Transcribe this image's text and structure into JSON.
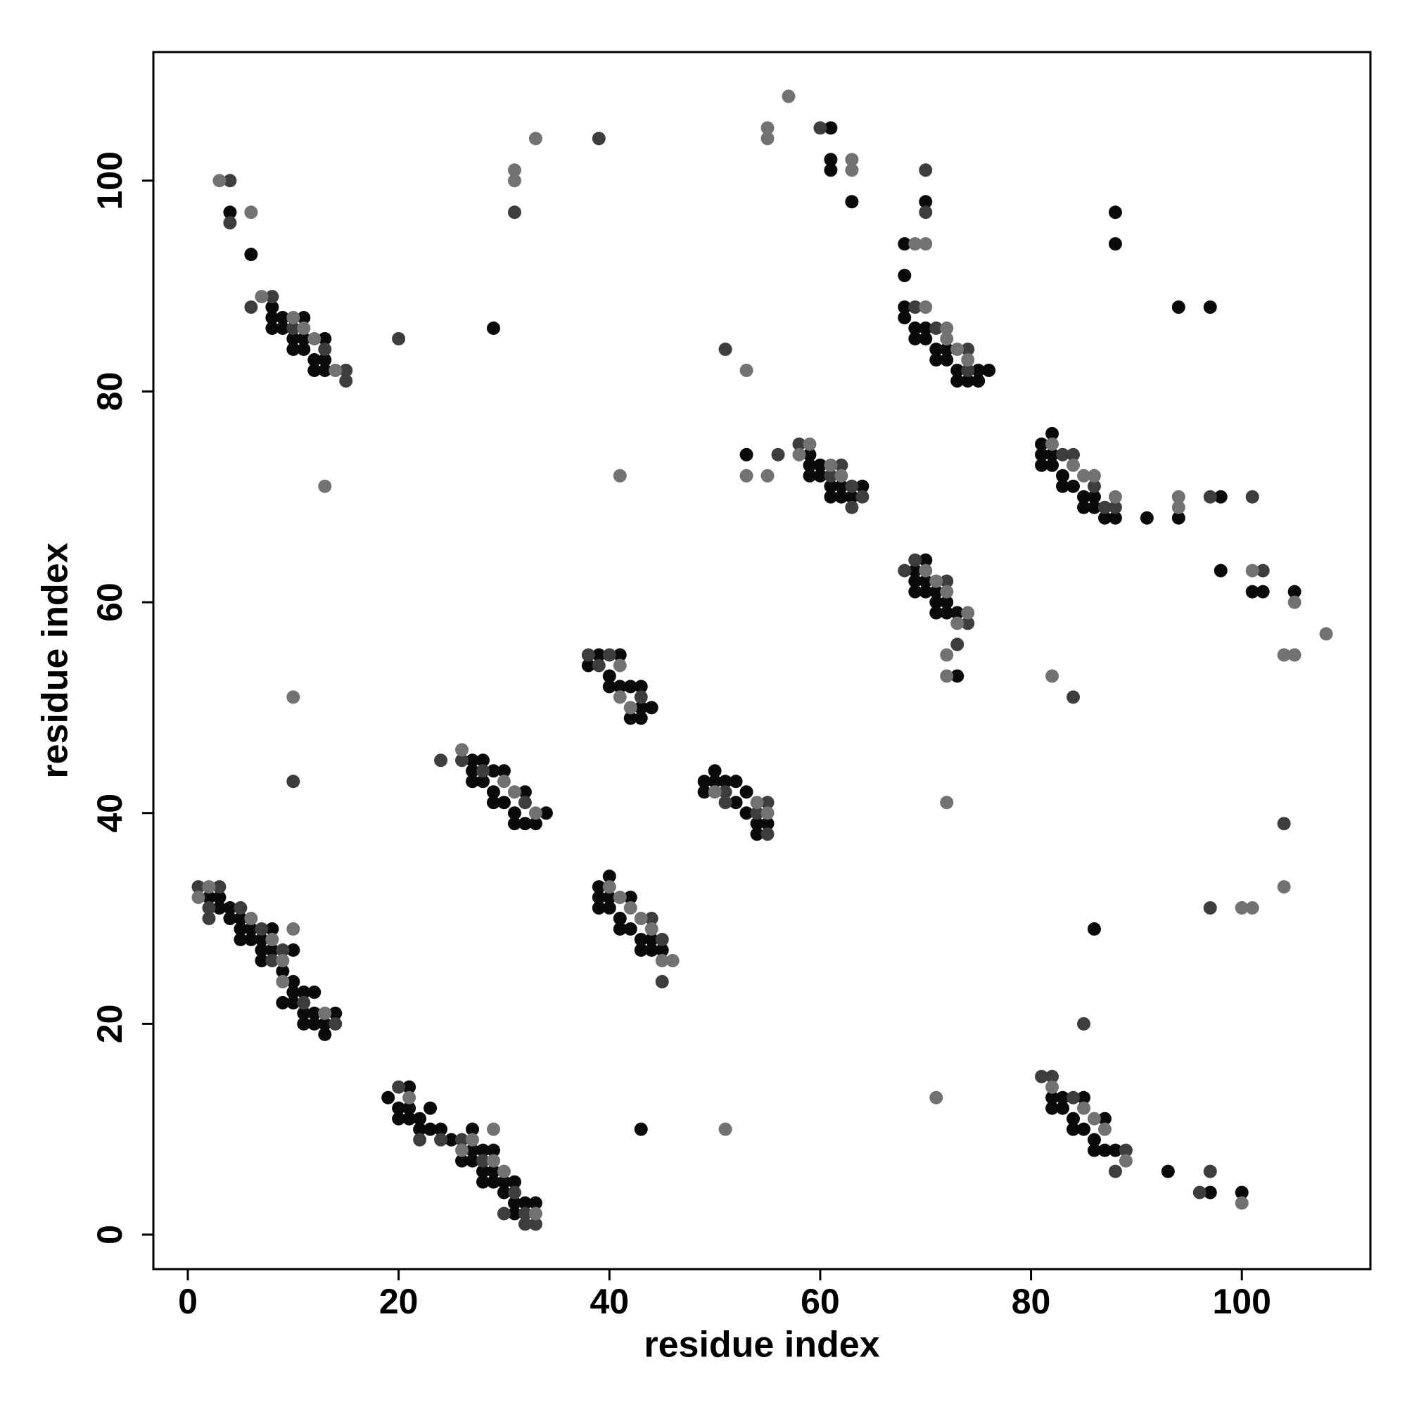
{
  "chart_data": {
    "type": "scatter",
    "xlabel": "residue index",
    "ylabel": "residue index",
    "xlim": [
      -3.27,
      112.2
    ],
    "ylim": [
      -3.27,
      112.2
    ],
    "xticks": [
      0,
      20,
      40,
      60,
      80,
      100
    ],
    "yticks": [
      0,
      20,
      40,
      60,
      80,
      100
    ],
    "series": [
      {
        "color": "#0a0a0a",
        "x": [
          4,
          6,
          8,
          8,
          8,
          9,
          9,
          10,
          10,
          11,
          11,
          11,
          12,
          12,
          13,
          13,
          13,
          29,
          61,
          61,
          61,
          63,
          70,
          68,
          68,
          68,
          68,
          69,
          69,
          70,
          70,
          71,
          71,
          72,
          72,
          73,
          73,
          74,
          75,
          75,
          76,
          88,
          88,
          94,
          97,
          53,
          59,
          59,
          59,
          60,
          60,
          61,
          61,
          62,
          62,
          63,
          64,
          81,
          81,
          81,
          82,
          82,
          82,
          83,
          83,
          84,
          85,
          85,
          86,
          86,
          87,
          88,
          91,
          94,
          98,
          98,
          101,
          102,
          105,
          69,
          69,
          69,
          70,
          70,
          70,
          71,
          71,
          71,
          72,
          72,
          73,
          73,
          38,
          39,
          40,
          40,
          41,
          41,
          42,
          42,
          43,
          43,
          43,
          44,
          27,
          27,
          27,
          28,
          28,
          29,
          29,
          29,
          30,
          30,
          31,
          31,
          32,
          32,
          33,
          34,
          49,
          49,
          50,
          50,
          51,
          52,
          52,
          53,
          53,
          54,
          54,
          55,
          2,
          3,
          3,
          4,
          4,
          5,
          5,
          5,
          6,
          6,
          7,
          7,
          7,
          8,
          8,
          9,
          9,
          10,
          10,
          10,
          10,
          11,
          11,
          11,
          12,
          12,
          12,
          13,
          13,
          14,
          39,
          39,
          39,
          40,
          40,
          40,
          41,
          41,
          42,
          42,
          43,
          43,
          44,
          44,
          45,
          86,
          19,
          20,
          20,
          21,
          21,
          21,
          22,
          22,
          23,
          23,
          24,
          25,
          26,
          27,
          27,
          27,
          28,
          28,
          28,
          29,
          29,
          29,
          30,
          30,
          31,
          31,
          31,
          32,
          33,
          43,
          82,
          82,
          83,
          83,
          84,
          84,
          85,
          85,
          86,
          86,
          87,
          87,
          88,
          93,
          97,
          100
        ],
        "values": [
          97,
          93,
          88,
          87,
          86,
          87,
          86,
          85,
          84,
          87,
          85,
          84,
          83,
          82,
          85,
          83,
          82,
          86,
          105,
          102,
          101,
          98,
          98,
          94,
          91,
          88,
          87,
          86,
          85,
          86,
          85,
          84,
          83,
          84,
          83,
          82,
          81,
          81,
          82,
          81,
          82,
          97,
          94,
          88,
          88,
          74,
          74,
          73,
          72,
          73,
          72,
          71,
          70,
          71,
          70,
          70,
          71,
          75,
          74,
          73,
          76,
          74,
          73,
          72,
          71,
          71,
          70,
          69,
          70,
          69,
          68,
          68,
          68,
          68,
          70,
          63,
          61,
          61,
          61,
          63,
          62,
          61,
          64,
          62,
          61,
          61,
          60,
          59,
          60,
          59,
          59,
          53,
          54,
          55,
          53,
          52,
          55,
          52,
          52,
          49,
          52,
          50,
          49,
          50,
          45,
          44,
          43,
          45,
          43,
          44,
          42,
          41,
          44,
          41,
          40,
          39,
          42,
          39,
          39,
          40,
          43,
          42,
          44,
          43,
          43,
          43,
          41,
          42,
          40,
          39,
          38,
          39,
          32,
          32,
          31,
          31,
          30,
          30,
          29,
          28,
          29,
          28,
          28,
          27,
          26,
          29,
          27,
          25,
          22,
          27,
          24,
          23,
          22,
          23,
          21,
          20,
          23,
          21,
          20,
          20,
          19,
          21,
          33,
          32,
          31,
          34,
          32,
          31,
          30,
          29,
          32,
          29,
          28,
          27,
          28,
          27,
          27,
          29,
          13,
          12,
          11,
          14,
          12,
          11,
          11,
          10,
          12,
          10,
          10,
          9,
          7,
          10,
          8,
          7,
          8,
          6,
          5,
          8,
          6,
          5,
          5,
          4,
          5,
          3,
          2,
          3,
          3,
          10,
          13,
          12,
          13,
          12,
          11,
          10,
          13,
          10,
          9,
          8,
          11,
          8,
          8,
          6,
          4,
          4
        ]
      },
      {
        "color": "#3d3d3d",
        "x": [
          4,
          4,
          6,
          8,
          10,
          13,
          15,
          15,
          20,
          31,
          39,
          60,
          70,
          70,
          69,
          71,
          74,
          74,
          51,
          56,
          58,
          61,
          62,
          63,
          63,
          64,
          83,
          84,
          86,
          87,
          88,
          97,
          101,
          102,
          68,
          69,
          72,
          74,
          73,
          84,
          10,
          38,
          39,
          40,
          43,
          24,
          26,
          28,
          32,
          51,
          51,
          54,
          55,
          55,
          1,
          2,
          2,
          3,
          5,
          7,
          8,
          9,
          11,
          14,
          44,
          45,
          45,
          85,
          97,
          104,
          20,
          22,
          24,
          26,
          28,
          30,
          31,
          32,
          32,
          33,
          81,
          82,
          84,
          88,
          89,
          96,
          97
        ],
        "values": [
          100,
          96,
          88,
          89,
          86,
          84,
          82,
          81,
          85,
          97,
          104,
          105,
          101,
          97,
          88,
          86,
          84,
          82,
          84,
          74,
          75,
          72,
          73,
          71,
          69,
          70,
          74,
          74,
          71,
          69,
          69,
          70,
          70,
          63,
          63,
          64,
          62,
          58,
          56,
          51,
          43,
          55,
          54,
          55,
          51,
          45,
          45,
          44,
          41,
          42,
          41,
          40,
          41,
          38,
          33,
          31,
          30,
          33,
          31,
          29,
          26,
          27,
          22,
          20,
          30,
          28,
          24,
          20,
          31,
          39,
          14,
          9,
          9,
          9,
          7,
          2,
          4,
          2,
          1,
          1,
          15,
          15,
          13,
          6,
          8,
          4,
          6
        ]
      },
      {
        "color": "#727272",
        "x": [
          3,
          6,
          7,
          10,
          11,
          12,
          14,
          13,
          31,
          31,
          33,
          57,
          55,
          55,
          63,
          63,
          69,
          70,
          70,
          72,
          72,
          73,
          74,
          53,
          41,
          53,
          55,
          58,
          59,
          61,
          62,
          82,
          84,
          85,
          86,
          88,
          94,
          94,
          101,
          105,
          104,
          105,
          108,
          70,
          71,
          72,
          73,
          74,
          72,
          72,
          82,
          10,
          41,
          41,
          42,
          26,
          30,
          31,
          33,
          50,
          54,
          55,
          72,
          1,
          2,
          6,
          8,
          9,
          9,
          10,
          13,
          40,
          41,
          42,
          43,
          44,
          45,
          46,
          100,
          101,
          104,
          21,
          26,
          27,
          29,
          29,
          30,
          33,
          51,
          71,
          82,
          85,
          86,
          87,
          89,
          100
        ],
        "values": [
          100,
          97,
          89,
          87,
          86,
          85,
          82,
          71,
          101,
          100,
          104,
          108,
          105,
          104,
          102,
          101,
          94,
          94,
          88,
          86,
          85,
          84,
          83,
          82,
          72,
          72,
          72,
          74,
          75,
          73,
          72,
          75,
          73,
          72,
          72,
          70,
          70,
          69,
          63,
          60,
          55,
          55,
          57,
          63,
          62,
          61,
          58,
          59,
          55,
          53,
          53,
          51,
          54,
          51,
          50,
          46,
          43,
          42,
          40,
          42,
          41,
          40,
          41,
          32,
          33,
          30,
          28,
          26,
          24,
          29,
          21,
          33,
          32,
          31,
          30,
          29,
          26,
          26,
          31,
          31,
          33,
          13,
          8,
          9,
          10,
          7,
          6,
          2,
          10,
          13,
          14,
          12,
          11,
          10,
          7,
          3
        ]
      }
    ]
  }
}
